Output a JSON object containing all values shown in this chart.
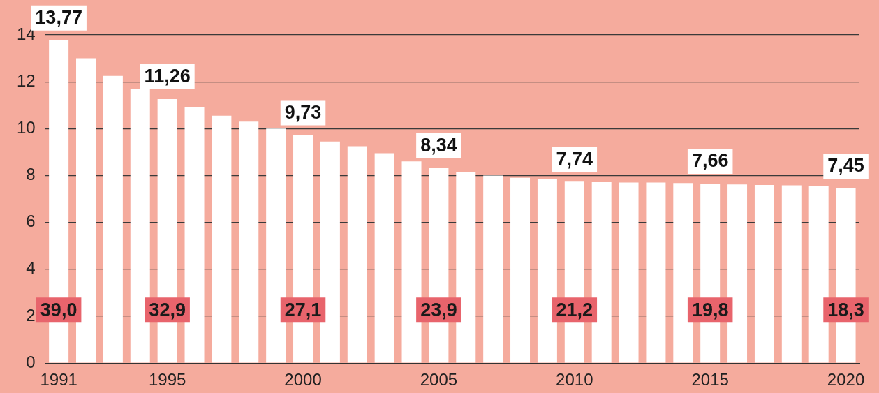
{
  "chart_data": {
    "type": "bar",
    "categories": [
      "1991",
      null,
      null,
      null,
      "1995",
      null,
      null,
      null,
      null,
      "2000",
      null,
      null,
      null,
      null,
      "2005",
      null,
      null,
      null,
      null,
      "2010",
      null,
      null,
      null,
      null,
      "2015",
      null,
      null,
      null,
      null,
      "2020"
    ],
    "values": [
      13.77,
      13.0,
      12.25,
      11.7,
      11.26,
      10.9,
      10.55,
      10.3,
      10.0,
      9.73,
      9.45,
      9.25,
      8.95,
      8.6,
      8.34,
      8.15,
      8.0,
      7.9,
      7.85,
      7.74,
      7.72,
      7.7,
      7.7,
      7.68,
      7.66,
      7.62,
      7.6,
      7.58,
      7.55,
      7.45
    ],
    "value_labels": [
      "13,77",
      null,
      null,
      null,
      "11,26",
      null,
      null,
      null,
      null,
      "9,73",
      null,
      null,
      null,
      null,
      "8,34",
      null,
      null,
      null,
      null,
      "7,74",
      null,
      null,
      null,
      null,
      "7,66",
      null,
      null,
      null,
      null,
      "7,45"
    ],
    "color": "#ffffff",
    "ylim": [
      0,
      14
    ],
    "yticks": [
      0,
      2,
      4,
      6,
      8,
      10,
      12,
      14
    ],
    "grid": "y",
    "annotations": [
      "39,0",
      "32,9",
      "27,1",
      "23,9",
      "21,2",
      "19,8",
      "18,3"
    ]
  }
}
